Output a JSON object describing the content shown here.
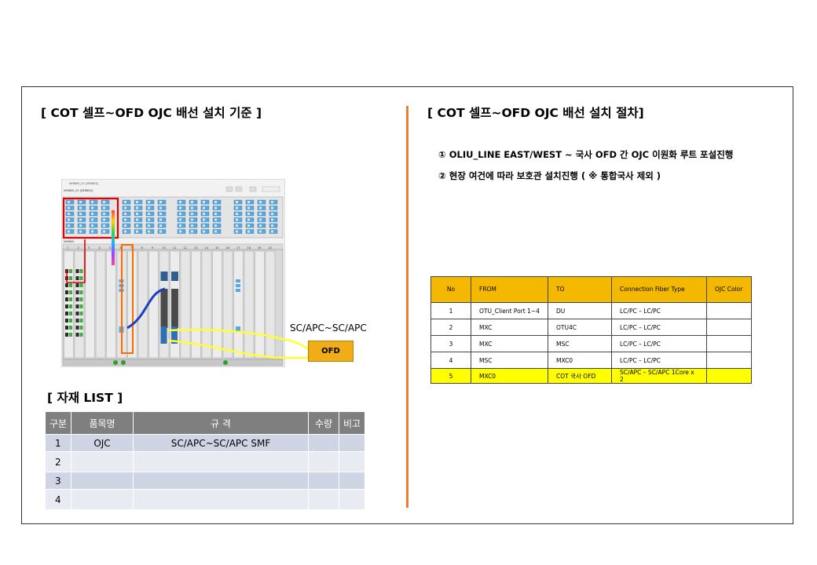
{
  "left_title": "[ COT 셀프~OFD OJC 배선 설치 기준 ]",
  "right_title": "[ COT 셀프~OFD OJC 배선 설치 절차]",
  "steps": [
    "① OLIU_LINE EAST/WEST ~ 국사 OFD 간 OJC 이원화 루트 포설진행",
    "② 현장 여건에 따라 보호관 설치진행 ( ※ 통합국사 제외 )"
  ],
  "diagram": {
    "window_title": "NF6800_01 [NF6800]",
    "shelf_label": "NF6800",
    "connector_label": "SC/APC~SC/APC",
    "ofd_label": "OFD",
    "accent_colors": {
      "highlight_red": "#e00000",
      "highlight_orange": "#ff6a00",
      "fiber_yellow": "#ffff33",
      "fiber_blue": "#1f3fbf"
    }
  },
  "route_table": {
    "headers": [
      "No",
      "FROM",
      "TO",
      "Connection  Fiber  Type",
      "OJC Color"
    ],
    "rows": [
      {
        "no": "1",
        "from": "OTU_Client Port 1~4",
        "to": "DU",
        "type": "LC/PC – LC/PC",
        "color": "",
        "highlight": false
      },
      {
        "no": "2",
        "from": "MXC",
        "to": "OTU4C",
        "type": "LC/PC – LC/PC",
        "color": "",
        "highlight": false
      },
      {
        "no": "3",
        "from": "MXC",
        "to": "MSC",
        "type": "LC/PC – LC/PC",
        "color": "",
        "highlight": false
      },
      {
        "no": "4",
        "from": "MSC",
        "to": "MXC0",
        "type": "LC/PC – LC/PC",
        "color": "",
        "highlight": false
      },
      {
        "no": "5",
        "from": "MXC0",
        "to": "COT 국사 OFD",
        "type": "SC/APC – SC/APC 1Core x 2",
        "color": "",
        "highlight": true
      }
    ],
    "header_color": "#f5b800",
    "highlight_color": "#ffff00"
  },
  "materials": {
    "title": "[ 자재 LIST ]",
    "headers": [
      "구분",
      "품목명",
      "규  격",
      "수량",
      "비고"
    ],
    "rows": [
      {
        "idx": "1",
        "name": "OJC",
        "spec": "SC/APC~SC/APC SMF",
        "qty": "",
        "note": ""
      },
      {
        "idx": "2",
        "name": "",
        "spec": "",
        "qty": "",
        "note": ""
      },
      {
        "idx": "3",
        "name": "",
        "spec": "",
        "qty": "",
        "note": ""
      },
      {
        "idx": "4",
        "name": "",
        "spec": "",
        "qty": "",
        "note": ""
      }
    ]
  }
}
